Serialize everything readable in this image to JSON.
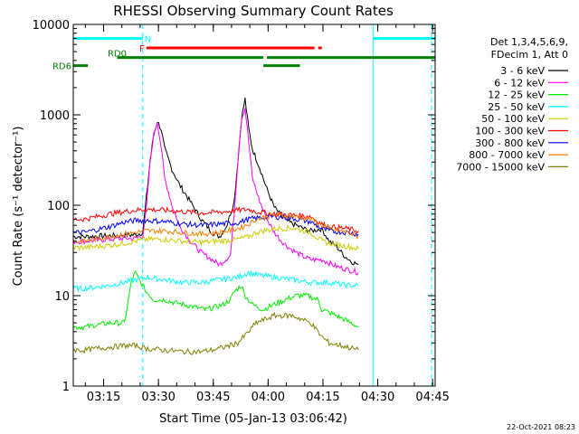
{
  "chart_data": {
    "type": "line",
    "title": "RHESSI Observing Summary Count Rates",
    "ylabel": "Count Rate (s⁻¹ detector⁻¹)",
    "xlabel": "Start Time (05-Jan-13 03:06:42)",
    "x_units": "minutes since 03:06:42",
    "xlim": [
      0,
      99
    ],
    "ylim": [
      1,
      10000
    ],
    "yscale": "log",
    "x_ticks": [
      {
        "label": "03:15",
        "x": 8.3
      },
      {
        "label": "03:30",
        "x": 23.3
      },
      {
        "label": "03:45",
        "x": 38.3
      },
      {
        "label": "04:00",
        "x": 53.3
      },
      {
        "label": "04:15",
        "x": 68.3
      },
      {
        "label": "04:30",
        "x": 83.3
      },
      {
        "label": "04:45",
        "x": 98.3
      }
    ],
    "y_ticks": [
      {
        "label": "1",
        "value": 1
      },
      {
        "label": "10",
        "value": 10
      },
      {
        "label": "100",
        "value": 100
      },
      {
        "label": "1000",
        "value": 1000
      },
      {
        "label": "10000",
        "value": 10000
      }
    ],
    "legend_header": [
      "Det 1,3,4,5,6,9,",
      "FDecim 1, Att 0"
    ],
    "series": [
      {
        "name": "3 - 6 keV",
        "color": "#000000",
        "points": [
          [
            0,
            45
          ],
          [
            3,
            45
          ],
          [
            10,
            46
          ],
          [
            14,
            47
          ],
          [
            17,
            47
          ],
          [
            19,
            50
          ],
          [
            21,
            300
          ],
          [
            22,
            600
          ],
          [
            23,
            850
          ],
          [
            24,
            700
          ],
          [
            25,
            420
          ],
          [
            27,
            250
          ],
          [
            29,
            170
          ],
          [
            32,
            110
          ],
          [
            35,
            70
          ],
          [
            38,
            50
          ],
          [
            40,
            45
          ],
          [
            42,
            60
          ],
          [
            44,
            110
          ],
          [
            45,
            300
          ],
          [
            46,
            900
          ],
          [
            47,
            1500
          ],
          [
            48,
            700
          ],
          [
            49,
            420
          ],
          [
            51,
            260
          ],
          [
            53,
            150
          ],
          [
            55,
            95
          ],
          [
            57,
            75
          ],
          [
            59,
            65
          ],
          [
            61,
            60
          ],
          [
            63,
            55
          ],
          [
            65,
            52
          ],
          [
            68,
            55
          ],
          [
            70,
            40
          ],
          [
            72,
            35
          ],
          [
            74,
            28
          ],
          [
            76,
            24
          ],
          [
            78,
            22
          ]
        ]
      },
      {
        "name": "6 - 12 keV",
        "color": "#ff00ff",
        "points": [
          [
            0,
            40
          ],
          [
            3,
            40
          ],
          [
            10,
            42
          ],
          [
            14,
            43
          ],
          [
            17,
            43
          ],
          [
            19,
            46
          ],
          [
            20,
            90
          ],
          [
            21,
            300
          ],
          [
            22,
            600
          ],
          [
            23,
            850
          ],
          [
            24,
            450
          ],
          [
            25,
            200
          ],
          [
            27,
            100
          ],
          [
            29,
            60
          ],
          [
            32,
            40
          ],
          [
            35,
            30
          ],
          [
            38,
            25
          ],
          [
            40,
            22
          ],
          [
            43,
            28
          ],
          [
            44,
            80
          ],
          [
            45,
            300
          ],
          [
            46,
            900
          ],
          [
            47,
            1200
          ],
          [
            48,
            500
          ],
          [
            49,
            200
          ],
          [
            51,
            110
          ],
          [
            53,
            70
          ],
          [
            55,
            50
          ],
          [
            57,
            40
          ],
          [
            59,
            34
          ],
          [
            61,
            30
          ],
          [
            63,
            27
          ],
          [
            65,
            25
          ],
          [
            68,
            25
          ],
          [
            70,
            23
          ],
          [
            72,
            21
          ],
          [
            74,
            20
          ],
          [
            76,
            19
          ],
          [
            78,
            18
          ]
        ]
      },
      {
        "name": "12 - 25 keV",
        "color": "#00ee00",
        "points": [
          [
            0,
            4.5
          ],
          [
            3,
            4.5
          ],
          [
            10,
            5
          ],
          [
            14,
            5
          ],
          [
            16,
            15
          ],
          [
            17,
            18
          ],
          [
            18,
            15
          ],
          [
            19,
            13
          ],
          [
            20,
            11
          ],
          [
            22,
            9
          ],
          [
            25,
            9
          ],
          [
            27,
            8.5
          ],
          [
            30,
            8
          ],
          [
            33,
            7.5
          ],
          [
            36,
            7
          ],
          [
            39,
            7.5
          ],
          [
            41,
            8
          ],
          [
            43,
            9
          ],
          [
            44,
            11
          ],
          [
            46,
            13
          ],
          [
            47,
            10
          ],
          [
            49,
            8
          ],
          [
            52,
            7
          ],
          [
            55,
            8
          ],
          [
            58,
            9
          ],
          [
            61,
            10
          ],
          [
            64,
            10
          ],
          [
            67,
            9
          ],
          [
            68,
            7
          ],
          [
            70,
            6.5
          ],
          [
            72,
            6
          ],
          [
            74,
            5.5
          ],
          [
            76,
            5
          ],
          [
            78,
            4.5
          ]
        ]
      },
      {
        "name": "25 - 50 keV",
        "color": "#00ffff",
        "points": [
          [
            0,
            12
          ],
          [
            3,
            12
          ],
          [
            10,
            13
          ],
          [
            14,
            14
          ],
          [
            17,
            15
          ],
          [
            20,
            16
          ],
          [
            25,
            15
          ],
          [
            30,
            14
          ],
          [
            35,
            14
          ],
          [
            40,
            15
          ],
          [
            45,
            16
          ],
          [
            48,
            18
          ],
          [
            50,
            17
          ],
          [
            55,
            16
          ],
          [
            60,
            15
          ],
          [
            65,
            14
          ],
          [
            70,
            14
          ],
          [
            75,
            13
          ],
          [
            78,
            13
          ]
        ]
      },
      {
        "name": "50 - 100 keV",
        "color": "#cccc00",
        "points": [
          [
            0,
            34
          ],
          [
            3,
            34
          ],
          [
            10,
            36
          ],
          [
            14,
            38
          ],
          [
            17,
            40
          ],
          [
            20,
            42
          ],
          [
            25,
            42
          ],
          [
            30,
            40
          ],
          [
            35,
            39
          ],
          [
            40,
            40
          ],
          [
            45,
            42
          ],
          [
            48,
            45
          ],
          [
            50,
            50
          ],
          [
            55,
            55
          ],
          [
            60,
            56
          ],
          [
            65,
            50
          ],
          [
            68,
            40
          ],
          [
            70,
            38
          ],
          [
            75,
            35
          ],
          [
            78,
            33
          ]
        ]
      },
      {
        "name": "100 - 300 keV",
        "color": "#ff0000",
        "points": [
          [
            0,
            70
          ],
          [
            3,
            70
          ],
          [
            10,
            80
          ],
          [
            14,
            85
          ],
          [
            17,
            88
          ],
          [
            20,
            90
          ],
          [
            25,
            88
          ],
          [
            30,
            85
          ],
          [
            35,
            82
          ],
          [
            40,
            84
          ],
          [
            45,
            88
          ],
          [
            48,
            90
          ],
          [
            50,
            85
          ],
          [
            55,
            80
          ],
          [
            60,
            78
          ],
          [
            65,
            75
          ],
          [
            68,
            62
          ],
          [
            70,
            58
          ],
          [
            75,
            55
          ],
          [
            78,
            52
          ]
        ]
      },
      {
        "name": "300 - 800 keV",
        "color": "#0000ff",
        "points": [
          [
            0,
            50
          ],
          [
            3,
            50
          ],
          [
            10,
            58
          ],
          [
            14,
            65
          ],
          [
            17,
            68
          ],
          [
            20,
            68
          ],
          [
            25,
            66
          ],
          [
            30,
            62
          ],
          [
            35,
            60
          ],
          [
            40,
            62
          ],
          [
            45,
            64
          ],
          [
            48,
            70
          ],
          [
            50,
            72
          ],
          [
            55,
            75
          ],
          [
            60,
            72
          ],
          [
            65,
            65
          ],
          [
            68,
            55
          ],
          [
            70,
            52
          ],
          [
            75,
            50
          ],
          [
            78,
            48
          ]
        ]
      },
      {
        "name": "800 - 7000 keV",
        "color": "#ff8000",
        "points": [
          [
            0,
            40
          ],
          [
            3,
            40
          ],
          [
            10,
            45
          ],
          [
            14,
            48
          ],
          [
            17,
            50
          ],
          [
            20,
            52
          ],
          [
            25,
            52
          ],
          [
            30,
            50
          ],
          [
            35,
            48
          ],
          [
            40,
            50
          ],
          [
            45,
            55
          ],
          [
            48,
            62
          ],
          [
            50,
            70
          ],
          [
            55,
            78
          ],
          [
            60,
            76
          ],
          [
            65,
            70
          ],
          [
            68,
            60
          ],
          [
            70,
            55
          ],
          [
            75,
            50
          ],
          [
            78,
            45
          ]
        ]
      },
      {
        "name": "7000 - 15000 keV",
        "color": "#808000",
        "points": [
          [
            0,
            2.5
          ],
          [
            3,
            2.5
          ],
          [
            10,
            2.7
          ],
          [
            14,
            2.8
          ],
          [
            17,
            2.8
          ],
          [
            20,
            2.6
          ],
          [
            25,
            2.5
          ],
          [
            30,
            2.4
          ],
          [
            35,
            2.4
          ],
          [
            40,
            2.6
          ],
          [
            45,
            3
          ],
          [
            48,
            4
          ],
          [
            50,
            5
          ],
          [
            55,
            6
          ],
          [
            60,
            6
          ],
          [
            65,
            5
          ],
          [
            68,
            3.5
          ],
          [
            70,
            3
          ],
          [
            75,
            2.7
          ],
          [
            78,
            2.5
          ]
        ]
      }
    ],
    "flags": [
      {
        "name": "N",
        "color": "#00ffff",
        "y": 7000,
        "segments": [
          [
            0,
            19
          ],
          [
            82,
            99
          ]
        ]
      },
      {
        "name": "F",
        "color": "#ff0000",
        "y": 5500,
        "segments": [
          [
            20,
            66
          ],
          [
            67,
            68
          ]
        ]
      },
      {
        "name": "RD0",
        "color": "#008000",
        "y": 4300,
        "segments": [
          [
            12,
            52
          ],
          [
            53,
            99
          ]
        ]
      },
      {
        "name": "RD6",
        "color": "#008000",
        "y": 3500,
        "segments": [
          [
            0,
            4
          ],
          [
            52,
            62
          ]
        ]
      }
    ],
    "vlines_dashed": [
      19,
      98
    ],
    "vlines_solid": [
      0,
      82
    ],
    "legend_position": "right",
    "footer": "22-Oct-2021 08:23"
  }
}
